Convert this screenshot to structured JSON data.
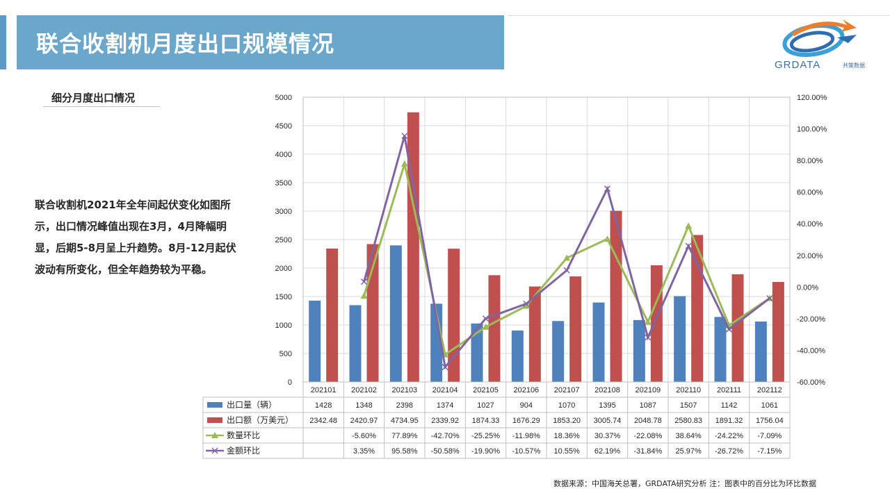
{
  "header": {
    "title": "联合收割机月度出口规模情况"
  },
  "logo": {
    "brand": "GRDATA",
    "tagline": "共策数据",
    "colors": [
      "#f07d2b",
      "#2e6db4",
      "#3aa0d8"
    ]
  },
  "section": {
    "subtitle": "细分月度出口情况"
  },
  "description": "联合收割机2021年全年间起伏变化如图所示，出口情况峰值出现在3月，4月降幅明显，后期5-8月呈上升趋势。8月-12月起伏波动有所变化，但全年趋势较为平稳。",
  "footer": {
    "source": "数据来源：中国海关总署，GRDATA研究分析  注：图表中的百分比为环比数据"
  },
  "chart_data": {
    "type": "bar",
    "categories": [
      "202101",
      "202102",
      "202103",
      "202104",
      "202105",
      "202106",
      "202107",
      "202108",
      "202109",
      "202110",
      "202111",
      "202112"
    ],
    "y_left": {
      "min": 0,
      "max": 5000,
      "step": 500
    },
    "y_right": {
      "min": -60,
      "max": 120,
      "step": 20,
      "unit": "%"
    },
    "grid": true,
    "legend": "data-table",
    "series": [
      {
        "name": "出口量（辆）",
        "kind": "bar",
        "axis": "left",
        "color": "#4f81bd",
        "values": [
          1428,
          1348,
          2398,
          1374,
          1027,
          904,
          1070,
          1395,
          1087,
          1507,
          1142,
          1061
        ],
        "labels": [
          "1428",
          "1348",
          "2398",
          "1374",
          "1027",
          "904",
          "1070",
          "1395",
          "1087",
          "1507",
          "1142",
          "1061"
        ]
      },
      {
        "name": "出口额（万美元）",
        "kind": "bar",
        "axis": "left",
        "color": "#c0504d",
        "values": [
          2342.48,
          2420.97,
          4734.95,
          2339.92,
          1874.33,
          1676.29,
          1853.2,
          3005.74,
          2048.78,
          2580.83,
          1891.32,
          1756.04
        ],
        "labels": [
          "2342.48",
          "2420.97",
          "4734.95",
          "2339.92",
          "1874.33",
          "1676.29",
          "1853.20",
          "3005.74",
          "2048.78",
          "2580.83",
          "1891.32",
          "1756.04"
        ]
      },
      {
        "name": "数量环比",
        "kind": "line",
        "axis": "right",
        "color": "#9bbb59",
        "marker": "triangle",
        "values": [
          null,
          -5.6,
          77.89,
          -42.7,
          -25.25,
          -11.98,
          18.36,
          30.37,
          -22.08,
          38.64,
          -24.22,
          -7.09
        ],
        "labels": [
          "",
          "-5.60%",
          "77.89%",
          "-42.70%",
          "-25.25%",
          "-11.98%",
          "18.36%",
          "30.37%",
          "-22.08%",
          "38.64%",
          "-24.22%",
          "-7.09%"
        ]
      },
      {
        "name": "金额环比",
        "kind": "line",
        "axis": "right",
        "color": "#8064a2",
        "marker": "x",
        "values": [
          null,
          3.35,
          95.58,
          -50.58,
          -19.9,
          -10.57,
          10.55,
          62.19,
          -31.84,
          25.97,
          -26.72,
          -7.15
        ],
        "labels": [
          "",
          "3.35%",
          "95.58%",
          "-50.58%",
          "-19.90%",
          "-10.57%",
          "10.55%",
          "62.19%",
          "-31.84%",
          "25.97%",
          "-26.72%",
          "-7.15%"
        ]
      }
    ]
  }
}
